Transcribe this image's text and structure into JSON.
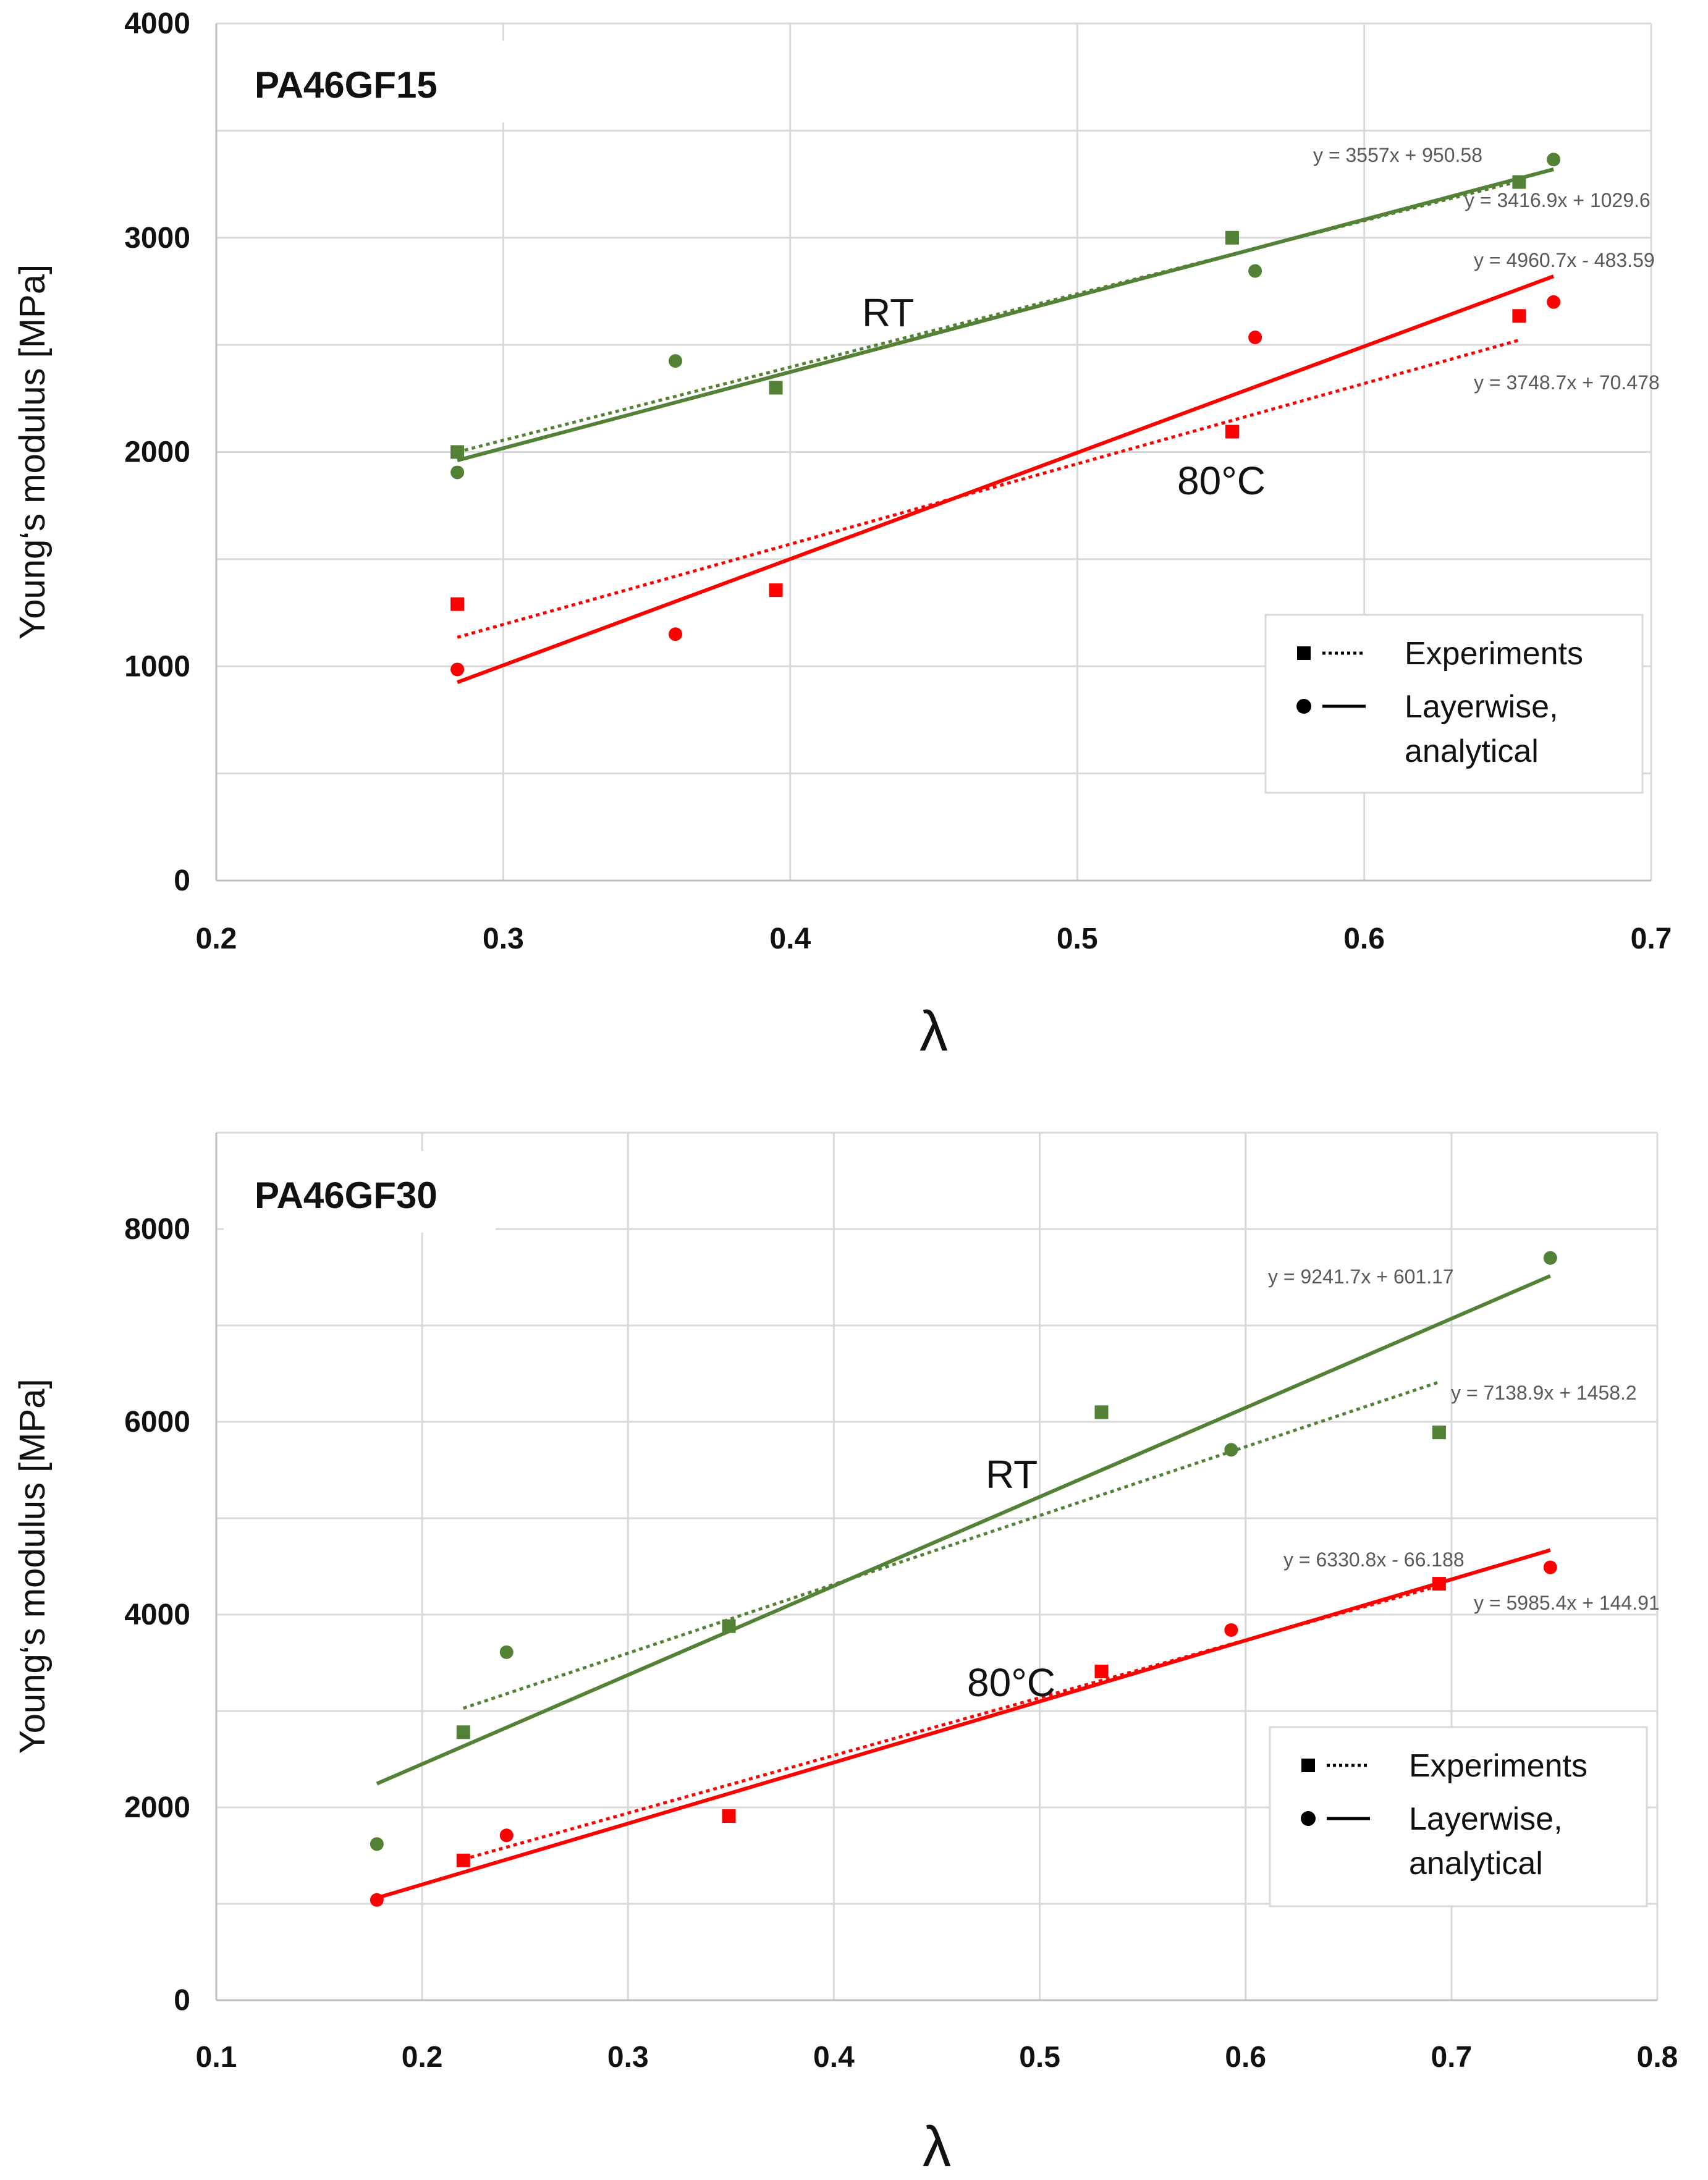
{
  "chart_data": [
    {
      "type": "scatter",
      "title": "PA46GF15",
      "xlabel": "λ",
      "ylabel": "Young‘s modulus [MPa]",
      "xlim": [
        0.2,
        0.7
      ],
      "ylim": [
        0,
        4000
      ],
      "x_ticks": [
        0.2,
        0.3,
        0.4,
        0.5,
        0.6,
        0.7
      ],
      "x_tick_labels": [
        "0.2",
        "0.3",
        "0.4",
        "0.5",
        "0.6",
        "0.7"
      ],
      "y_gridlines": [
        0,
        500,
        1000,
        1500,
        2000,
        2500,
        3000,
        3500,
        4000
      ],
      "y_tick_values": [
        0,
        1000,
        2000,
        3000,
        4000
      ],
      "y_tick_labels": [
        "0",
        "1000",
        "2000",
        "3000",
        "4000"
      ],
      "grid": true,
      "legend_position": "bottom-right",
      "legend": [
        {
          "marker": "square",
          "line": "dotted",
          "label": "Experiments"
        },
        {
          "marker": "circle",
          "line": "solid",
          "label": "Layerwise,",
          "label2": "analytical"
        }
      ],
      "series": [
        {
          "group": "RT",
          "kind": "experiments",
          "color": "#538135",
          "marker": "square",
          "x": [
            0.284,
            0.395,
            0.554,
            0.654
          ],
          "y": [
            2000,
            2300,
            3000,
            3260
          ]
        },
        {
          "group": "RT",
          "kind": "layerwise",
          "color": "#538135",
          "marker": "circle",
          "x": [
            0.284,
            0.36,
            0.562,
            0.666
          ],
          "y": [
            1905,
            2425,
            2845,
            3365
          ]
        },
        {
          "group": "80°C",
          "kind": "experiments",
          "color": "#ff0000",
          "marker": "square",
          "x": [
            0.284,
            0.395,
            0.554,
            0.654
          ],
          "y": [
            1290,
            1355,
            2095,
            2635
          ]
        },
        {
          "group": "80°C",
          "kind": "layerwise",
          "color": "#ff0000",
          "marker": "circle",
          "x": [
            0.284,
            0.36,
            0.562,
            0.666
          ],
          "y": [
            985,
            1150,
            2535,
            2700
          ]
        }
      ],
      "trendlines": [
        {
          "group": "RT",
          "style": "dotted",
          "color": "#538135",
          "slope": 3416.9,
          "intercept": 1029.6,
          "x_range": [
            0.284,
            0.654
          ],
          "equation": "y = 3416.9x + 1029.6"
        },
        {
          "group": "RT",
          "style": "solid",
          "color": "#538135",
          "slope": 3557,
          "intercept": 950.58,
          "x_range": [
            0.284,
            0.666
          ],
          "equation": "y = 3557x + 950.58"
        },
        {
          "group": "80°C",
          "style": "dotted",
          "color": "#ff0000",
          "slope": 3748.7,
          "intercept": 70.478,
          "x_range": [
            0.284,
            0.654
          ],
          "equation": "y = 3748.7x + 70.478"
        },
        {
          "group": "80°C",
          "style": "solid",
          "color": "#ff0000",
          "slope": 4960.7,
          "intercept": -483.59,
          "x_range": [
            0.284,
            0.666
          ],
          "equation": "y = 4960.7x - 483.59"
        }
      ],
      "annotations": [
        "RT",
        "80°C"
      ]
    },
    {
      "type": "scatter",
      "title": "PA46GF30",
      "xlabel": "λ",
      "ylabel": "Young‘s modulus [MPa]",
      "xlim": [
        0.1,
        0.8
      ],
      "ylim": [
        0,
        9000
      ],
      "x_ticks": [
        0.1,
        0.2,
        0.3,
        0.4,
        0.5,
        0.6,
        0.7,
        0.8
      ],
      "x_tick_labels": [
        "0.1",
        "0.2",
        "0.3",
        "0.4",
        "0.5",
        "0.6",
        "0.7",
        "0.8"
      ],
      "y_gridlines": [
        0,
        1000,
        2000,
        3000,
        4000,
        5000,
        6000,
        7000,
        8000,
        9000
      ],
      "y_tick_values": [
        0,
        2000,
        4000,
        6000,
        8000
      ],
      "y_tick_labels": [
        "0",
        "2000",
        "4000",
        "6000",
        "8000"
      ],
      "grid": true,
      "legend_position": "bottom-right",
      "legend": [
        {
          "marker": "square",
          "line": "dotted",
          "label": "Experiments"
        },
        {
          "marker": "circle",
          "line": "solid",
          "label": "Layerwise,",
          "label2": "analytical"
        }
      ],
      "series": [
        {
          "group": "RT",
          "kind": "experiments",
          "color": "#538135",
          "marker": "square",
          "x": [
            0.22,
            0.349,
            0.53,
            0.694
          ],
          "y": [
            2780,
            3880,
            6100,
            5890
          ]
        },
        {
          "group": "RT",
          "kind": "layerwise",
          "color": "#538135",
          "marker": "circle",
          "x": [
            0.178,
            0.241,
            0.593,
            0.748
          ],
          "y": [
            1620,
            3610,
            5710,
            7700
          ]
        },
        {
          "group": "80°C",
          "kind": "experiments",
          "color": "#ff0000",
          "marker": "square",
          "x": [
            0.22,
            0.349,
            0.53,
            0.694
          ],
          "y": [
            1450,
            1910,
            3410,
            4320
          ]
        },
        {
          "group": "80°C",
          "kind": "layerwise",
          "color": "#ff0000",
          "marker": "circle",
          "x": [
            0.178,
            0.241,
            0.593,
            0.748
          ],
          "y": [
            1040,
            1710,
            3840,
            4490
          ]
        }
      ],
      "trendlines": [
        {
          "group": "RT",
          "style": "dotted",
          "color": "#538135",
          "slope": 7138.9,
          "intercept": 1458.2,
          "x_range": [
            0.22,
            0.694
          ],
          "equation": "y = 7138.9x + 1458.2"
        },
        {
          "group": "RT",
          "style": "solid",
          "color": "#538135",
          "slope": 9241.7,
          "intercept": 601.17,
          "x_range": [
            0.178,
            0.748
          ],
          "equation": "y = 9241.7x + 601.17"
        },
        {
          "group": "80°C",
          "style": "dotted",
          "color": "#ff0000",
          "slope": 5985.4,
          "intercept": 144.91,
          "x_range": [
            0.22,
            0.694
          ],
          "equation": "y = 5985.4x + 144.91"
        },
        {
          "group": "80°C",
          "style": "solid",
          "color": "#ff0000",
          "slope": 6330.8,
          "intercept": -66.188,
          "x_range": [
            0.178,
            0.748
          ],
          "equation": "y = 6330.8x - 66.188"
        }
      ],
      "annotations": [
        "RT",
        "80°C"
      ]
    }
  ]
}
